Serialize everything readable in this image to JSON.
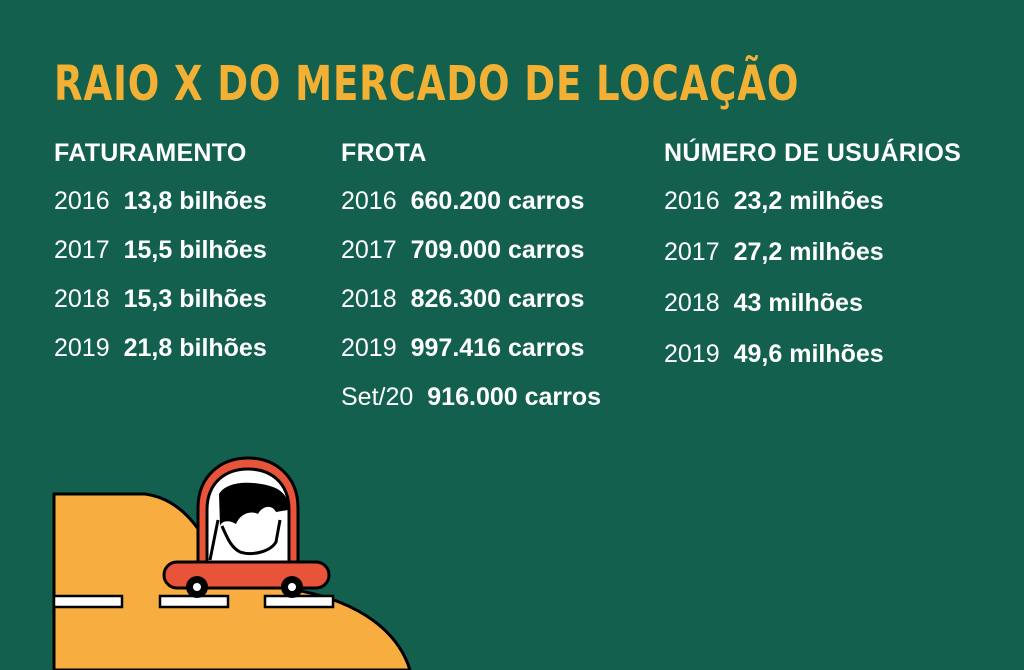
{
  "title": "RAIO X DO MERCADO DE LOCAÇÃO",
  "colors": {
    "background": "#12604d",
    "title": "#f2b134",
    "road": "#f7ad40",
    "car": "#e8543a",
    "text": "#ffffff"
  },
  "columns": [
    {
      "heading": "FATURAMENTO",
      "rows": [
        {
          "year": "2016",
          "value": "13,8 bilhões"
        },
        {
          "year": "2017",
          "value": "15,5 bilhões"
        },
        {
          "year": "2018",
          "value": "15,3 bilhões"
        },
        {
          "year": "2019",
          "value": "21,8 bilhões"
        }
      ]
    },
    {
      "heading": "FROTA",
      "rows": [
        {
          "year": "2016",
          "value": "660.200 carros"
        },
        {
          "year": "2017",
          "value": "709.000 carros"
        },
        {
          "year": "2018",
          "value": "826.300 carros"
        },
        {
          "year": "2019",
          "value": "997.416 carros"
        },
        {
          "year": "Set/20",
          "value": "916.000 carros"
        }
      ]
    },
    {
      "heading": "NÚMERO DE USUÁRIOS",
      "rows": [
        {
          "year": "2016",
          "value": "23,2 milhões"
        },
        {
          "year": "2017",
          "value": "27,2 milhões"
        },
        {
          "year": "2018",
          "value": "43 milhões"
        },
        {
          "year": "2019",
          "value": "49,6 milhões"
        }
      ]
    }
  ]
}
